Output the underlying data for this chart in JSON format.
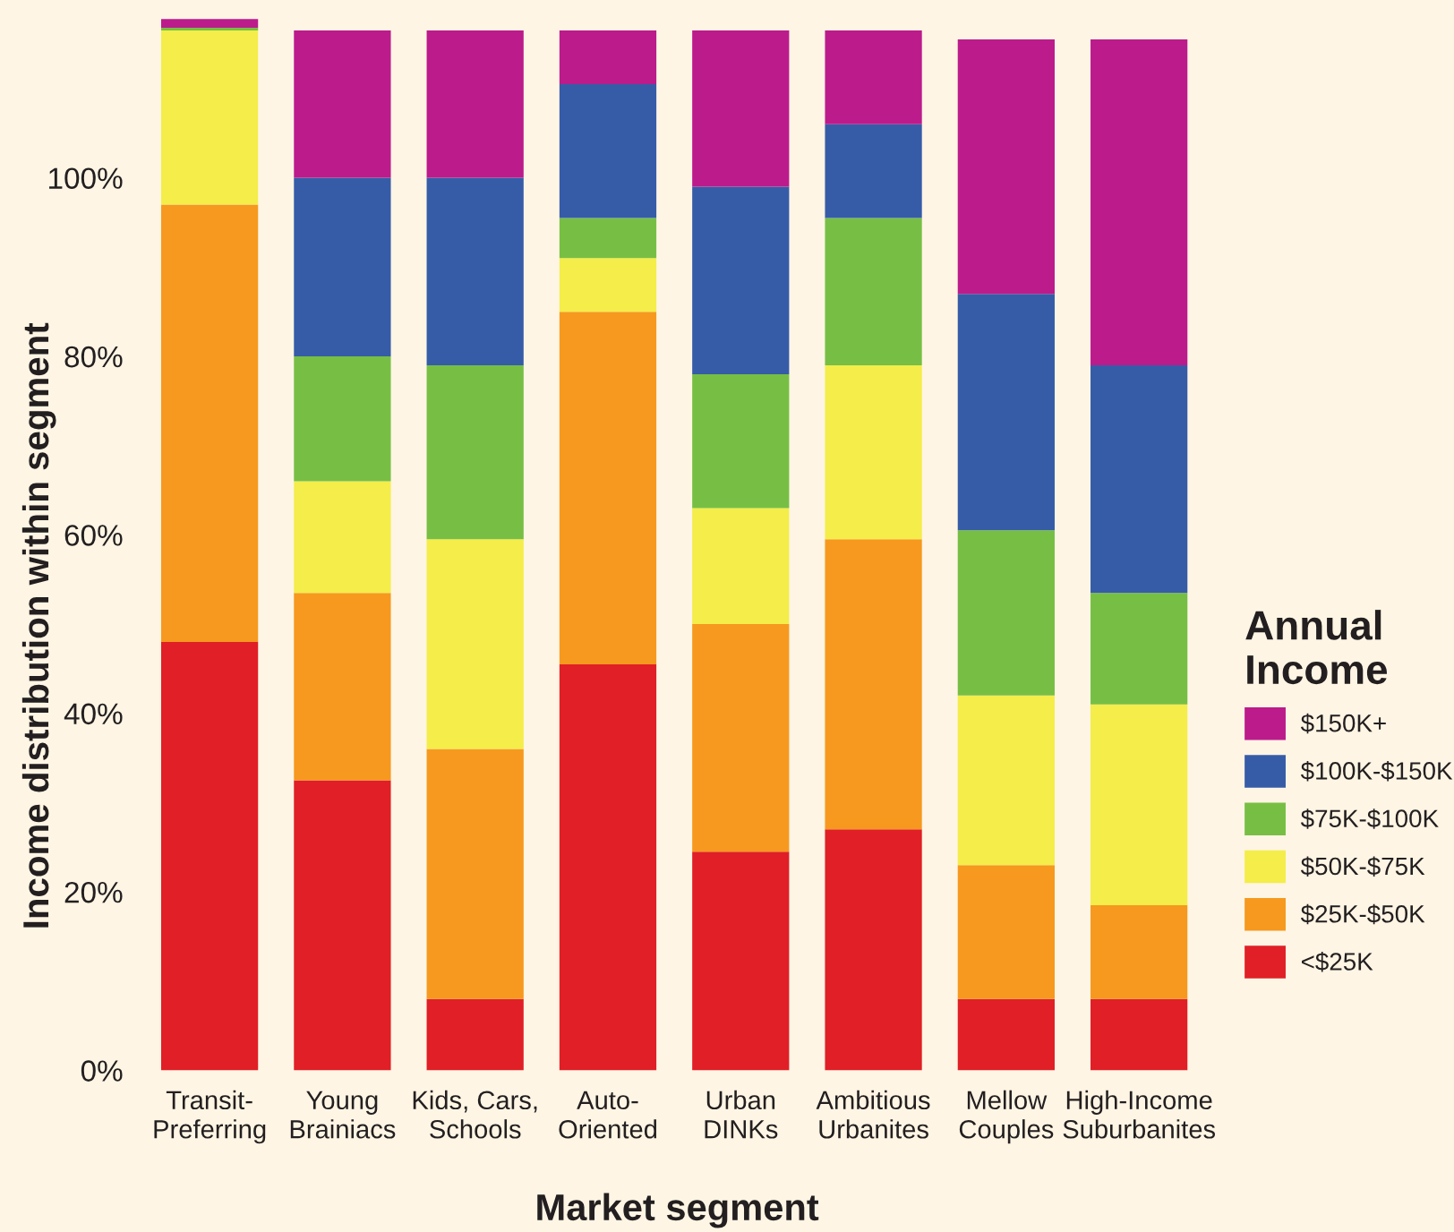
{
  "chart_data": {
    "type": "bar",
    "stacked": true,
    "xlabel": "Market segment",
    "ylabel": "Income distribution within segment",
    "legend_title": "Annual\nIncome",
    "categories": [
      "Transit-\nPreferring",
      "Young\nBrainiacs",
      "Kids, Cars,\nSchools",
      "Auto-\nOriented",
      "Urban\nDINKs",
      "Ambitious\nUrbanites",
      "Mellow\nCouples",
      "High-Income\nSuburbanites"
    ],
    "series": [
      {
        "name": "<$25K",
        "color": "#e01f26",
        "values": [
          48,
          32.5,
          8,
          45.5,
          24.5,
          27,
          8,
          8
        ]
      },
      {
        "name": "$25K-$50K",
        "color": "#f6991e",
        "values": [
          49,
          21,
          28,
          39.5,
          25.5,
          32.5,
          15,
          10.5
        ]
      },
      {
        "name": "$50K-$75K",
        "color": "#f4ed4a",
        "values": [
          19.5,
          12.5,
          23.5,
          6,
          13,
          19.5,
          19,
          22.5
        ]
      },
      {
        "name": "$75K-$100K",
        "color": "#77bf44",
        "values": [
          0.3,
          14,
          19.5,
          4.5,
          15,
          16.5,
          18.5,
          12.5
        ]
      },
      {
        "name": "$100K-$150K",
        "color": "#365ca8",
        "values": [
          0,
          20,
          21,
          15,
          21,
          10.5,
          26.5,
          25.5
        ]
      },
      {
        "name": "$150K+",
        "color": "#bc1b8c",
        "values": [
          1,
          16.5,
          16.5,
          6,
          17.5,
          10.5,
          28.5,
          36.5
        ]
      }
    ],
    "ylim": [
      0,
      118.5
    ],
    "yticks": [
      {
        "value": 0,
        "label": "0%"
      },
      {
        "value": 20,
        "label": "20%"
      },
      {
        "value": 40,
        "label": "40%"
      },
      {
        "value": 60,
        "label": "60%"
      },
      {
        "value": 80,
        "label": "80%"
      },
      {
        "value": 100,
        "label": "100%"
      }
    ],
    "grid": false,
    "legend": "right"
  }
}
